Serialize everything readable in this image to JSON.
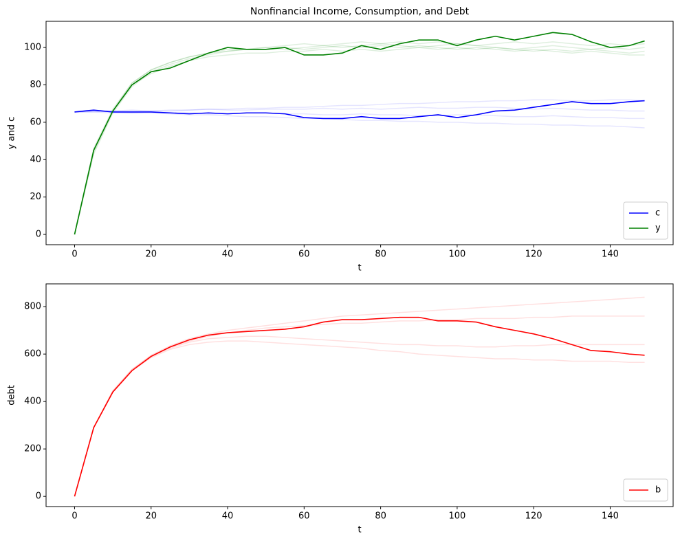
{
  "chart_data": [
    {
      "type": "line",
      "title": "Nonfinancial Income, Consumption, and Debt",
      "x_label": "t",
      "y_label": "y and c",
      "x": [
        0,
        5,
        10,
        15,
        20,
        25,
        30,
        35,
        40,
        45,
        50,
        55,
        60,
        65,
        70,
        75,
        80,
        85,
        90,
        95,
        100,
        105,
        110,
        115,
        120,
        125,
        130,
        135,
        140,
        145,
        149
      ],
      "xlim": [
        -7.45,
        156.45
      ],
      "xticks": [
        0,
        20,
        40,
        60,
        80,
        100,
        120,
        140
      ],
      "ylim": [
        -5.5,
        114
      ],
      "yticks": [
        0,
        20,
        40,
        60,
        80,
        100
      ],
      "legend": "lower right",
      "series": [
        {
          "name": "c",
          "color": "#0000ff",
          "values": [
            65.5,
            66.5,
            65.5,
            65.5,
            65.5,
            65,
            64.5,
            65,
            64.5,
            65,
            65,
            64.5,
            62.5,
            62,
            62,
            63,
            62,
            62,
            63,
            64,
            62.5,
            64,
            66,
            66.5,
            68,
            69.5,
            71,
            70,
            70,
            71,
            71.5
          ]
        },
        {
          "name": "y",
          "color": "#008000",
          "values": [
            0,
            45,
            66,
            80,
            87,
            89,
            93,
            97,
            100,
            99,
            99,
            100,
            96,
            96,
            97,
            101,
            99,
            102,
            104,
            104,
            101,
            104,
            106,
            104,
            106,
            108,
            107,
            103,
            100,
            101,
            103.5
          ]
        },
        {
          "color": "#008000",
          "opacity": 0.13,
          "values": [
            0,
            46,
            67,
            81,
            88,
            92,
            95,
            97,
            98,
            99,
            99,
            100,
            99,
            100,
            101,
            100,
            101,
            100,
            101,
            100,
            99,
            100,
            99,
            98,
            99,
            98,
            97,
            98,
            97,
            96,
            96
          ]
        },
        {
          "color": "#008000",
          "opacity": 0.13,
          "values": [
            0,
            43,
            65,
            79,
            87,
            91,
            94,
            96,
            98,
            99,
            100,
            101,
            102,
            101,
            102,
            103,
            102,
            103,
            102,
            103,
            102,
            101,
            102,
            103,
            102,
            103,
            102,
            101,
            102,
            101,
            102
          ]
        },
        {
          "color": "#008000",
          "opacity": 0.13,
          "values": [
            0,
            45,
            66,
            80,
            86,
            90,
            93,
            95,
            96,
            97,
            97,
            98,
            98,
            99,
            98,
            99,
            98,
            99,
            100,
            99,
            100,
            99,
            100,
            99,
            100,
            101,
            100,
            99,
            100,
            99,
            100
          ]
        },
        {
          "color": "#008000",
          "opacity": 0.13,
          "values": [
            0,
            44,
            66,
            81,
            88,
            92,
            95,
            97,
            99,
            99,
            100,
            99,
            100,
            101,
            100,
            101,
            102,
            101,
            100,
            101,
            102,
            101,
            100,
            99,
            98,
            99,
            98,
            99,
            98,
            97,
            98
          ]
        },
        {
          "color": "#0000ff",
          "opacity": 0.1,
          "values": [
            65.5,
            66,
            65.5,
            65,
            65,
            64.5,
            64,
            64,
            63.5,
            63,
            63,
            62.5,
            62,
            62,
            61.5,
            61,
            61,
            60.5,
            60.5,
            60,
            60,
            59.5,
            59.5,
            59,
            59,
            58.5,
            58.5,
            58,
            58,
            57.5,
            57
          ]
        },
        {
          "color": "#0000ff",
          "opacity": 0.1,
          "values": [
            65.5,
            65.5,
            66,
            66,
            66,
            66.5,
            66.5,
            67,
            67,
            67.5,
            67.5,
            68,
            68,
            68.5,
            69,
            69,
            69.5,
            70,
            70,
            70.5,
            71,
            71,
            71.5,
            71.5,
            72,
            72,
            71.5,
            71.5,
            72,
            72,
            71.5
          ]
        },
        {
          "color": "#0000ff",
          "opacity": 0.1,
          "values": [
            65.5,
            65.5,
            65,
            65,
            65.5,
            65,
            65,
            64.5,
            64.5,
            65,
            65,
            64.5,
            64.5,
            64,
            64,
            64.5,
            64,
            64,
            63.5,
            63.5,
            64,
            64,
            63.5,
            63,
            63,
            63.5,
            63,
            62.5,
            62.5,
            62,
            62
          ]
        },
        {
          "color": "#0000ff",
          "opacity": 0.1,
          "values": [
            65.5,
            66,
            66,
            66.5,
            66,
            66,
            66.5,
            67,
            66.5,
            66.5,
            67,
            67,
            67,
            67.5,
            67,
            67.5,
            67,
            67.5,
            68,
            67.5,
            67.5,
            68,
            68,
            67.5,
            67,
            67.5,
            67,
            66.5,
            66.5,
            66,
            66
          ]
        }
      ]
    },
    {
      "type": "line",
      "x_label": "t",
      "y_label": "debt",
      "x": [
        0,
        5,
        10,
        15,
        20,
        25,
        30,
        35,
        40,
        45,
        50,
        55,
        60,
        65,
        70,
        75,
        80,
        85,
        90,
        95,
        100,
        105,
        110,
        115,
        120,
        125,
        130,
        135,
        140,
        145,
        149
      ],
      "xlim": [
        -7.45,
        156.45
      ],
      "xticks": [
        0,
        20,
        40,
        60,
        80,
        100,
        120,
        140
      ],
      "ylim": [
        -43,
        896
      ],
      "yticks": [
        0,
        200,
        400,
        600,
        800
      ],
      "legend": "lower right",
      "series": [
        {
          "name": "b",
          "color": "#ff0000",
          "values": [
            0,
            290,
            440,
            530,
            590,
            630,
            660,
            680,
            690,
            695,
            700,
            705,
            715,
            735,
            745,
            745,
            750,
            755,
            755,
            740,
            740,
            735,
            715,
            700,
            685,
            665,
            640,
            615,
            610,
            600,
            595
          ]
        },
        {
          "color": "#ff0000",
          "opacity": 0.12,
          "values": [
            0,
            290,
            440,
            530,
            585,
            620,
            640,
            650,
            655,
            655,
            650,
            645,
            640,
            635,
            630,
            625,
            615,
            610,
            600,
            595,
            590,
            585,
            580,
            580,
            575,
            575,
            570,
            570,
            570,
            565,
            565
          ]
        },
        {
          "color": "#ff0000",
          "opacity": 0.12,
          "values": [
            0,
            290,
            445,
            535,
            595,
            635,
            665,
            685,
            700,
            710,
            720,
            730,
            740,
            750,
            760,
            765,
            770,
            775,
            780,
            785,
            790,
            795,
            800,
            805,
            810,
            815,
            820,
            825,
            830,
            835,
            840
          ]
        },
        {
          "color": "#ff0000",
          "opacity": 0.12,
          "values": [
            0,
            290,
            440,
            530,
            590,
            625,
            650,
            665,
            670,
            675,
            675,
            670,
            665,
            660,
            655,
            650,
            645,
            640,
            640,
            635,
            635,
            630,
            630,
            635,
            635,
            640,
            640,
            640,
            640,
            640,
            640
          ]
        },
        {
          "color": "#ff0000",
          "opacity": 0.12,
          "values": [
            0,
            290,
            445,
            535,
            592,
            630,
            655,
            675,
            690,
            700,
            710,
            715,
            720,
            725,
            730,
            730,
            735,
            740,
            740,
            745,
            745,
            750,
            750,
            750,
            755,
            755,
            760,
            760,
            760,
            760,
            760
          ]
        }
      ]
    }
  ]
}
